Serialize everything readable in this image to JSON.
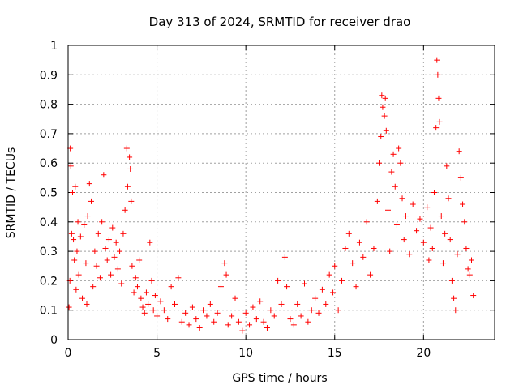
{
  "chart_data": {
    "type": "scatter",
    "title": "Day 313 of 2024, SRMTID for receiver drao",
    "xlabel": "GPS time / hours",
    "ylabel": "SRMTID / TECUs",
    "xlim": [
      0,
      24
    ],
    "ylim": [
      0,
      1
    ],
    "x_ticks": [
      0,
      5,
      10,
      15,
      20
    ],
    "x_tick_labels": [
      "0",
      "5",
      "10",
      "15",
      "20"
    ],
    "y_ticks": [
      0,
      0.1,
      0.2,
      0.3,
      0.4,
      0.5,
      0.6,
      0.7,
      0.8,
      0.9,
      1
    ],
    "y_tick_labels": [
      "0",
      "0.1",
      "0.2",
      "0.3",
      "0.4",
      "0.5",
      "0.6",
      "0.7",
      "0.8",
      "0.9",
      "1"
    ],
    "grid": true,
    "marker": "plus",
    "color": "#ff0000",
    "series": [
      {
        "name": "SRMTID",
        "points": [
          [
            0.05,
            0.11
          ],
          [
            0.1,
            0.2
          ],
          [
            0.12,
            0.65
          ],
          [
            0.15,
            0.59
          ],
          [
            0.2,
            0.36
          ],
          [
            0.25,
            0.5
          ],
          [
            0.3,
            0.34
          ],
          [
            0.35,
            0.27
          ],
          [
            0.4,
            0.52
          ],
          [
            0.45,
            0.17
          ],
          [
            0.5,
            0.3
          ],
          [
            0.55,
            0.4
          ],
          [
            0.6,
            0.22
          ],
          [
            0.7,
            0.35
          ],
          [
            0.8,
            0.14
          ],
          [
            0.9,
            0.39
          ],
          [
            1.0,
            0.26
          ],
          [
            1.05,
            0.12
          ],
          [
            1.1,
            0.42
          ],
          [
            1.2,
            0.53
          ],
          [
            1.3,
            0.47
          ],
          [
            1.4,
            0.18
          ],
          [
            1.5,
            0.3
          ],
          [
            1.6,
            0.25
          ],
          [
            1.7,
            0.36
          ],
          [
            1.8,
            0.21
          ],
          [
            1.9,
            0.4
          ],
          [
            2.0,
            0.56
          ],
          [
            2.1,
            0.31
          ],
          [
            2.2,
            0.27
          ],
          [
            2.3,
            0.34
          ],
          [
            2.4,
            0.22
          ],
          [
            2.5,
            0.38
          ],
          [
            2.6,
            0.28
          ],
          [
            2.7,
            0.33
          ],
          [
            2.8,
            0.24
          ],
          [
            2.9,
            0.3
          ],
          [
            3.0,
            0.19
          ],
          [
            3.1,
            0.36
          ],
          [
            3.2,
            0.44
          ],
          [
            3.3,
            0.65
          ],
          [
            3.35,
            0.52
          ],
          [
            3.45,
            0.62
          ],
          [
            3.5,
            0.58
          ],
          [
            3.55,
            0.47
          ],
          [
            3.6,
            0.25
          ],
          [
            3.7,
            0.16
          ],
          [
            3.8,
            0.21
          ],
          [
            3.9,
            0.18
          ],
          [
            4.0,
            0.27
          ],
          [
            4.1,
            0.14
          ],
          [
            4.2,
            0.11
          ],
          [
            4.3,
            0.09
          ],
          [
            4.4,
            0.16
          ],
          [
            4.5,
            0.12
          ],
          [
            4.6,
            0.33
          ],
          [
            4.7,
            0.2
          ],
          [
            4.8,
            0.1
          ],
          [
            4.9,
            0.15
          ],
          [
            5.0,
            0.08
          ],
          [
            5.2,
            0.13
          ],
          [
            5.4,
            0.1
          ],
          [
            5.6,
            0.07
          ],
          [
            5.8,
            0.18
          ],
          [
            6.0,
            0.12
          ],
          [
            6.2,
            0.21
          ],
          [
            6.4,
            0.06
          ],
          [
            6.6,
            0.09
          ],
          [
            6.8,
            0.05
          ],
          [
            7.0,
            0.11
          ],
          [
            7.2,
            0.07
          ],
          [
            7.4,
            0.04
          ],
          [
            7.6,
            0.1
          ],
          [
            7.8,
            0.08
          ],
          [
            8.0,
            0.12
          ],
          [
            8.2,
            0.06
          ],
          [
            8.4,
            0.09
          ],
          [
            8.6,
            0.18
          ],
          [
            8.8,
            0.26
          ],
          [
            8.9,
            0.22
          ],
          [
            9.0,
            0.05
          ],
          [
            9.2,
            0.08
          ],
          [
            9.4,
            0.14
          ],
          [
            9.6,
            0.06
          ],
          [
            9.8,
            0.03
          ],
          [
            10.0,
            0.09
          ],
          [
            10.2,
            0.05
          ],
          [
            10.4,
            0.11
          ],
          [
            10.6,
            0.07
          ],
          [
            10.8,
            0.13
          ],
          [
            11.0,
            0.06
          ],
          [
            11.2,
            0.04
          ],
          [
            11.4,
            0.1
          ],
          [
            11.6,
            0.08
          ],
          [
            11.8,
            0.2
          ],
          [
            12.0,
            0.12
          ],
          [
            12.2,
            0.28
          ],
          [
            12.3,
            0.18
          ],
          [
            12.5,
            0.07
          ],
          [
            12.7,
            0.05
          ],
          [
            12.9,
            0.12
          ],
          [
            13.1,
            0.08
          ],
          [
            13.3,
            0.19
          ],
          [
            13.5,
            0.06
          ],
          [
            13.7,
            0.1
          ],
          [
            13.9,
            0.14
          ],
          [
            14.1,
            0.09
          ],
          [
            14.3,
            0.17
          ],
          [
            14.5,
            0.12
          ],
          [
            14.7,
            0.22
          ],
          [
            14.9,
            0.16
          ],
          [
            15.0,
            0.25
          ],
          [
            15.2,
            0.1
          ],
          [
            15.4,
            0.2
          ],
          [
            15.6,
            0.31
          ],
          [
            15.8,
            0.36
          ],
          [
            16.0,
            0.26
          ],
          [
            16.2,
            0.18
          ],
          [
            16.4,
            0.33
          ],
          [
            16.6,
            0.28
          ],
          [
            16.8,
            0.4
          ],
          [
            17.0,
            0.22
          ],
          [
            17.2,
            0.31
          ],
          [
            17.4,
            0.47
          ],
          [
            17.5,
            0.6
          ],
          [
            17.6,
            0.69
          ],
          [
            17.65,
            0.83
          ],
          [
            17.7,
            0.79
          ],
          [
            17.8,
            0.76
          ],
          [
            17.85,
            0.82
          ],
          [
            17.9,
            0.71
          ],
          [
            18.0,
            0.44
          ],
          [
            18.1,
            0.3
          ],
          [
            18.2,
            0.57
          ],
          [
            18.3,
            0.63
          ],
          [
            18.4,
            0.52
          ],
          [
            18.5,
            0.39
          ],
          [
            18.6,
            0.65
          ],
          [
            18.7,
            0.6
          ],
          [
            18.8,
            0.48
          ],
          [
            18.9,
            0.34
          ],
          [
            19.0,
            0.42
          ],
          [
            19.2,
            0.29
          ],
          [
            19.4,
            0.46
          ],
          [
            19.6,
            0.37
          ],
          [
            19.8,
            0.41
          ],
          [
            20.0,
            0.33
          ],
          [
            20.2,
            0.45
          ],
          [
            20.3,
            0.27
          ],
          [
            20.4,
            0.38
          ],
          [
            20.5,
            0.31
          ],
          [
            20.6,
            0.5
          ],
          [
            20.7,
            0.72
          ],
          [
            20.75,
            0.95
          ],
          [
            20.8,
            0.9
          ],
          [
            20.85,
            0.82
          ],
          [
            20.9,
            0.74
          ],
          [
            21.0,
            0.42
          ],
          [
            21.1,
            0.26
          ],
          [
            21.2,
            0.36
          ],
          [
            21.3,
            0.59
          ],
          [
            21.4,
            0.48
          ],
          [
            21.5,
            0.34
          ],
          [
            21.6,
            0.2
          ],
          [
            21.7,
            0.14
          ],
          [
            21.8,
            0.1
          ],
          [
            21.9,
            0.29
          ],
          [
            22.0,
            0.64
          ],
          [
            22.1,
            0.55
          ],
          [
            22.2,
            0.46
          ],
          [
            22.3,
            0.4
          ],
          [
            22.4,
            0.31
          ],
          [
            22.5,
            0.24
          ],
          [
            22.6,
            0.22
          ],
          [
            22.7,
            0.27
          ],
          [
            22.8,
            0.15
          ]
        ]
      }
    ]
  }
}
